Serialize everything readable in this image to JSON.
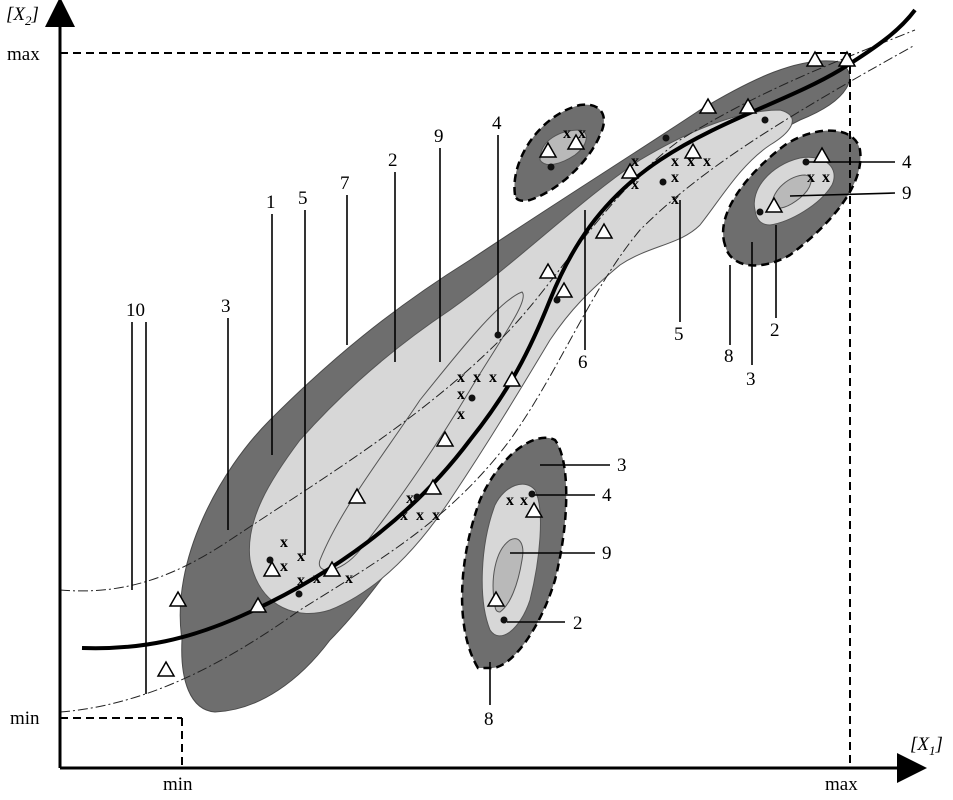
{
  "axes": {
    "y_label_base": "[X",
    "y_label_sub": "2",
    "y_label_close": "]",
    "x_label_base": "[X",
    "x_label_sub": "1",
    "x_label_close": "]",
    "y_max": "max",
    "y_min": "min",
    "x_min": "min",
    "x_max": "max"
  },
  "labels": {
    "l10": "10",
    "l3_left": "3",
    "l1": "1",
    "l5_left": "5",
    "l7": "7",
    "l2_top": "2",
    "l9_top": "9",
    "l4_top": "4",
    "l6": "6",
    "l5_right": "5",
    "l8_right": "8",
    "l3_right": "3",
    "l2_right": "2",
    "l4_right": "4",
    "l9_right": "9",
    "l3_bottom": "3",
    "l4_bottom": "4",
    "l9_bottom": "9",
    "l2_bottom": "2",
    "l8_bottom": "8"
  },
  "colors": {
    "dark_region": "#6e6e6e",
    "light_region": "#d7d7d7",
    "mid_region": "#b9b9b9",
    "curve": "#000000"
  },
  "markers": {
    "triangle": "△",
    "cross": "x",
    "dot": "•"
  }
}
